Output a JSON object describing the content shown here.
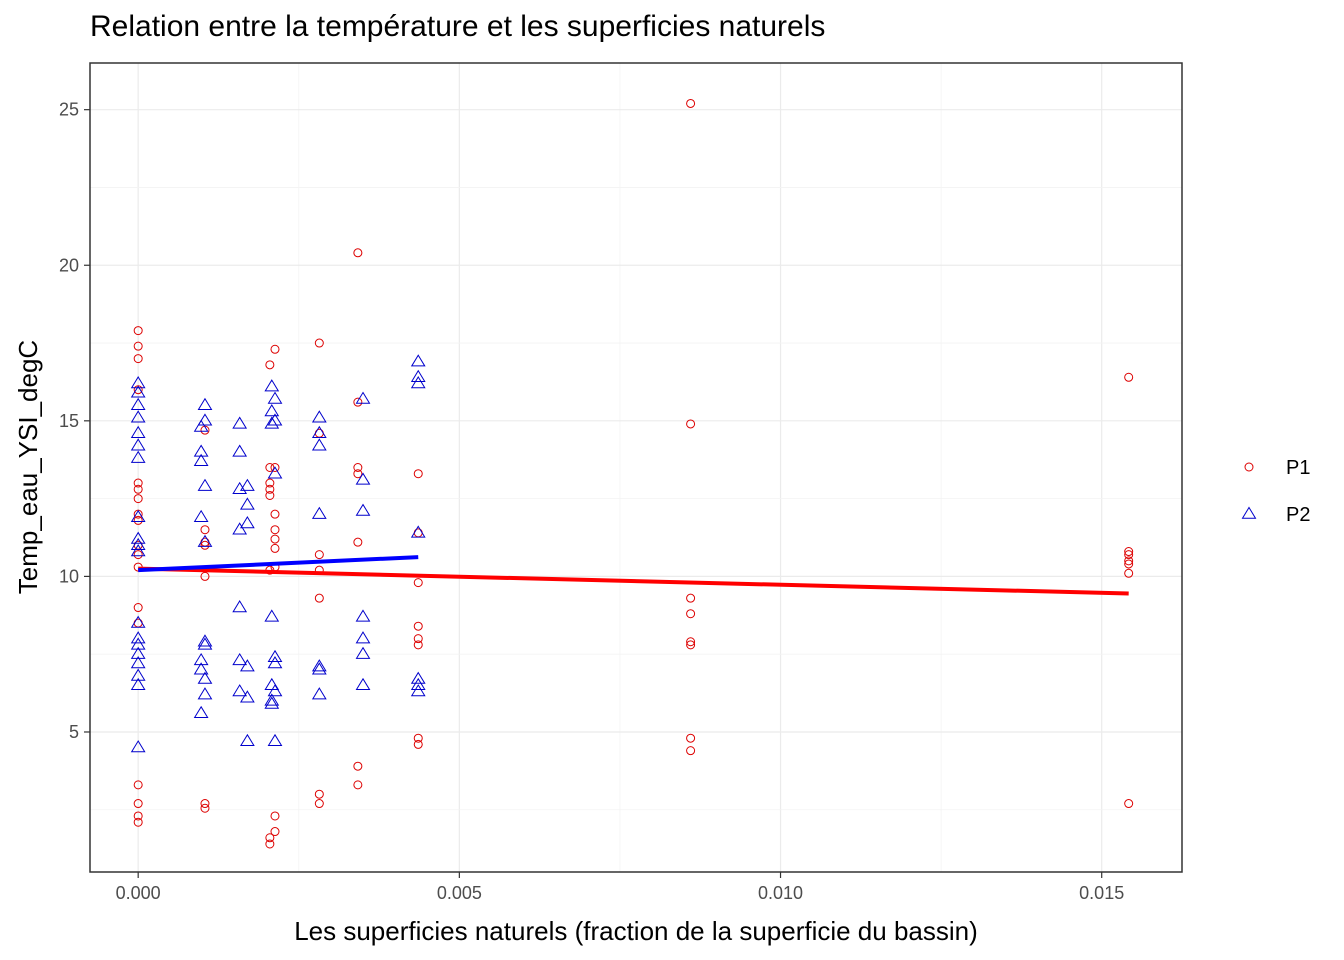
{
  "chart_data": {
    "type": "scatter",
    "title": "Relation entre la température et les superficies naturels",
    "xlabel": "Les superficies naturels (fraction de la superficie du bassin)",
    "ylabel": "Temp_eau_YSI_degC",
    "xlim": [
      -0.00075,
      0.01625
    ],
    "ylim": [
      0.5,
      26.5
    ],
    "x_ticks": [
      0.0,
      0.005,
      0.01,
      0.015
    ],
    "x_tick_labels": [
      "0.000",
      "0.005",
      "0.010",
      "0.015"
    ],
    "y_ticks": [
      5,
      10,
      15,
      20,
      25
    ],
    "y_tick_labels": [
      "5",
      "10",
      "15",
      "20",
      "25"
    ],
    "grid": true,
    "legend_position": "right",
    "series": [
      {
        "name": "P1",
        "marker": "circle",
        "color": "#dd0000",
        "points": [
          [
            0.0,
            17.9
          ],
          [
            0.0,
            17.4
          ],
          [
            0.0,
            17.0
          ],
          [
            0.0,
            16.0
          ],
          [
            0.0,
            13.0
          ],
          [
            0.0,
            12.8
          ],
          [
            0.0,
            12.5
          ],
          [
            0.0,
            12.0
          ],
          [
            0.0,
            11.8
          ],
          [
            0.0,
            11.0
          ],
          [
            0.0,
            10.7
          ],
          [
            0.0,
            10.3
          ],
          [
            0.0,
            9.0
          ],
          [
            0.0,
            8.5
          ],
          [
            0.0,
            3.3
          ],
          [
            0.0,
            2.7
          ],
          [
            0.0,
            2.3
          ],
          [
            0.0,
            2.1
          ],
          [
            0.00104,
            14.7
          ],
          [
            0.00104,
            11.5
          ],
          [
            0.00104,
            11.1
          ],
          [
            0.00104,
            11.0
          ],
          [
            0.00104,
            10.0
          ],
          [
            0.00104,
            2.7
          ],
          [
            0.00104,
            2.55
          ],
          [
            0.00205,
            16.8
          ],
          [
            0.00213,
            17.3
          ],
          [
            0.00205,
            13.5
          ],
          [
            0.00213,
            13.5
          ],
          [
            0.00205,
            13.0
          ],
          [
            0.00205,
            12.8
          ],
          [
            0.00205,
            12.6
          ],
          [
            0.00213,
            12.0
          ],
          [
            0.00213,
            11.5
          ],
          [
            0.00213,
            11.2
          ],
          [
            0.00213,
            10.9
          ],
          [
            0.00213,
            10.3
          ],
          [
            0.00205,
            10.2
          ],
          [
            0.00213,
            2.3
          ],
          [
            0.00213,
            1.8
          ],
          [
            0.00205,
            1.6
          ],
          [
            0.00205,
            1.4
          ],
          [
            0.00282,
            17.5
          ],
          [
            0.00282,
            14.6
          ],
          [
            0.00282,
            10.7
          ],
          [
            0.00282,
            10.2
          ],
          [
            0.00282,
            9.3
          ],
          [
            0.00282,
            3.0
          ],
          [
            0.00282,
            2.7
          ],
          [
            0.00342,
            20.4
          ],
          [
            0.00342,
            15.6
          ],
          [
            0.00342,
            13.5
          ],
          [
            0.00342,
            13.3
          ],
          [
            0.00342,
            11.1
          ],
          [
            0.00342,
            3.9
          ],
          [
            0.00342,
            3.3
          ],
          [
            0.00436,
            13.3
          ],
          [
            0.00436,
            11.4
          ],
          [
            0.00436,
            9.8
          ],
          [
            0.00436,
            8.4
          ],
          [
            0.00436,
            8.0
          ],
          [
            0.00436,
            7.8
          ],
          [
            0.00436,
            4.8
          ],
          [
            0.00436,
            4.6
          ],
          [
            0.0086,
            25.2
          ],
          [
            0.0086,
            14.9
          ],
          [
            0.0086,
            9.3
          ],
          [
            0.0086,
            8.8
          ],
          [
            0.0086,
            7.9
          ],
          [
            0.0086,
            7.8
          ],
          [
            0.0086,
            4.8
          ],
          [
            0.0086,
            4.4
          ],
          [
            0.01542,
            16.4
          ],
          [
            0.01542,
            10.8
          ],
          [
            0.01542,
            10.7
          ],
          [
            0.01542,
            10.5
          ],
          [
            0.01542,
            10.4
          ],
          [
            0.01542,
            10.1
          ],
          [
            0.01542,
            2.7
          ]
        ],
        "fit_line": {
          "x": [
            0.0,
            0.01542
          ],
          "y": [
            10.25,
            9.45
          ],
          "color": "#ff0000"
        }
      },
      {
        "name": "P2",
        "marker": "triangle",
        "color": "#0000cc",
        "points": [
          [
            0.0,
            16.2
          ],
          [
            0.0,
            15.9
          ],
          [
            0.0,
            15.5
          ],
          [
            0.0,
            15.1
          ],
          [
            0.0,
            14.6
          ],
          [
            0.0,
            14.2
          ],
          [
            0.0,
            13.8
          ],
          [
            0.0,
            11.9
          ],
          [
            0.0,
            11.2
          ],
          [
            0.0,
            11.0
          ],
          [
            0.0,
            10.8
          ],
          [
            0.0,
            8.5
          ],
          [
            0.0,
            8.0
          ],
          [
            0.0,
            7.8
          ],
          [
            0.0,
            7.5
          ],
          [
            0.0,
            7.2
          ],
          [
            0.0,
            6.8
          ],
          [
            0.0,
            6.5
          ],
          [
            0.0,
            4.5
          ],
          [
            0.00104,
            15.5
          ],
          [
            0.00104,
            15.0
          ],
          [
            0.00098,
            14.8
          ],
          [
            0.00098,
            14.0
          ],
          [
            0.00098,
            13.7
          ],
          [
            0.00104,
            12.9
          ],
          [
            0.00098,
            11.9
          ],
          [
            0.00104,
            11.1
          ],
          [
            0.00104,
            7.9
          ],
          [
            0.00104,
            7.8
          ],
          [
            0.00098,
            7.3
          ],
          [
            0.00098,
            7.0
          ],
          [
            0.00104,
            6.7
          ],
          [
            0.00104,
            6.2
          ],
          [
            0.00098,
            5.6
          ],
          [
            0.00158,
            14.9
          ],
          [
            0.00158,
            14.0
          ],
          [
            0.00158,
            12.8
          ],
          [
            0.0017,
            12.9
          ],
          [
            0.0017,
            12.3
          ],
          [
            0.00158,
            11.5
          ],
          [
            0.0017,
            11.7
          ],
          [
            0.00158,
            9.0
          ],
          [
            0.00158,
            7.3
          ],
          [
            0.0017,
            7.1
          ],
          [
            0.00158,
            6.3
          ],
          [
            0.0017,
            6.1
          ],
          [
            0.0017,
            4.7
          ],
          [
            0.00208,
            16.1
          ],
          [
            0.00213,
            15.7
          ],
          [
            0.00208,
            15.3
          ],
          [
            0.00213,
            15.0
          ],
          [
            0.00208,
            14.9
          ],
          [
            0.00213,
            13.3
          ],
          [
            0.00208,
            8.7
          ],
          [
            0.00213,
            7.4
          ],
          [
            0.00213,
            7.2
          ],
          [
            0.00208,
            6.5
          ],
          [
            0.00213,
            6.3
          ],
          [
            0.00208,
            6.0
          ],
          [
            0.00208,
            5.9
          ],
          [
            0.00213,
            4.7
          ],
          [
            0.00282,
            15.1
          ],
          [
            0.00282,
            14.6
          ],
          [
            0.00282,
            14.2
          ],
          [
            0.00282,
            12.0
          ],
          [
            0.00282,
            7.1
          ],
          [
            0.00282,
            7.0
          ],
          [
            0.00282,
            6.2
          ],
          [
            0.0035,
            15.7
          ],
          [
            0.0035,
            13.1
          ],
          [
            0.0035,
            12.1
          ],
          [
            0.0035,
            8.7
          ],
          [
            0.0035,
            8.0
          ],
          [
            0.0035,
            7.5
          ],
          [
            0.0035,
            6.5
          ],
          [
            0.00436,
            16.9
          ],
          [
            0.00436,
            16.4
          ],
          [
            0.00436,
            16.2
          ],
          [
            0.00436,
            11.4
          ],
          [
            0.00436,
            6.7
          ],
          [
            0.00436,
            6.5
          ],
          [
            0.00436,
            6.3
          ]
        ],
        "fit_line": {
          "x": [
            0.0,
            0.00436
          ],
          "y": [
            10.2,
            10.62
          ],
          "color": "#0000ff"
        }
      }
    ]
  }
}
